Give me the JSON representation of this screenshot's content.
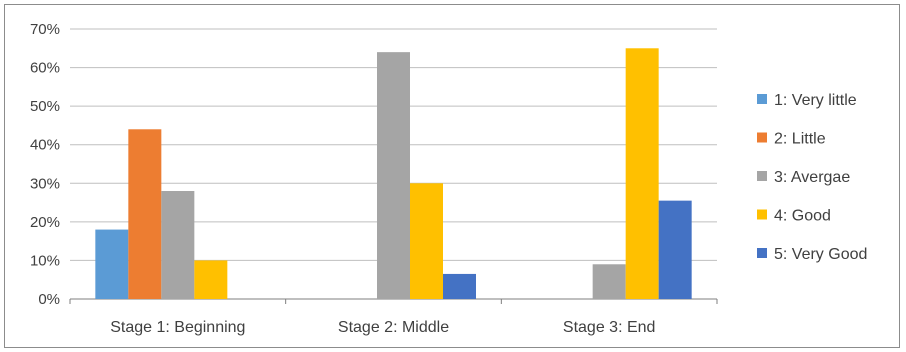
{
  "chart_data": {
    "type": "bar",
    "categories": [
      "Stage 1: Beginning",
      "Stage 2: Middle",
      "Stage 3: End"
    ],
    "series": [
      {
        "name": "1: Very little",
        "color": "#5b9bd5",
        "values": [
          18,
          0,
          0
        ]
      },
      {
        "name": "2: Little",
        "color": "#ed7d31",
        "values": [
          44,
          0,
          0
        ]
      },
      {
        "name": "3: Avergae",
        "color": "#a5a5a5",
        "values": [
          28,
          64,
          9
        ]
      },
      {
        "name": "4: Good",
        "color": "#ffc000",
        "values": [
          10,
          30,
          65
        ]
      },
      {
        "name": "5: Very Good",
        "color": "#4472c4",
        "values": [
          0,
          6.5,
          25.5
        ]
      }
    ],
    "y_ticks": [
      "0%",
      "10%",
      "20%",
      "30%",
      "40%",
      "50%",
      "60%",
      "70%"
    ],
    "ylim": [
      0,
      70
    ],
    "y_unit": "%",
    "title": "",
    "xlabel": "",
    "ylabel": "",
    "grid": true,
    "legend_position": "right"
  }
}
